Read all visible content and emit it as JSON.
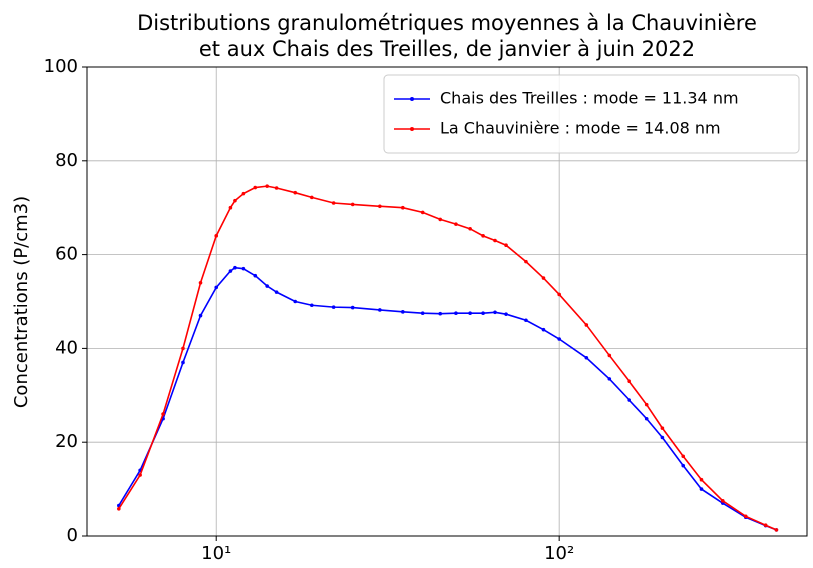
{
  "chart_data": {
    "type": "line",
    "title": [
      "Distributions granulométriques moyennes à la Chauvinière",
      "et aux Chais des Treilles, de janvier à juin 2022"
    ],
    "ylabel": "Concentrations (P/cm3)",
    "xscale": "log",
    "xlim": [
      4.2,
      528
    ],
    "xticks": [
      {
        "value": 10,
        "label": "10¹"
      },
      {
        "value": 100,
        "label": "10²"
      }
    ],
    "ylim": [
      0,
      100
    ],
    "yticks": [
      0,
      20,
      40,
      60,
      80,
      100
    ],
    "grid": true,
    "legend": "upper right",
    "x": [
      5.2,
      6,
      7,
      8,
      9,
      10,
      11,
      11.34,
      12,
      13,
      14.08,
      15,
      17,
      19,
      22,
      25,
      30,
      35,
      40,
      45,
      50,
      55,
      60,
      65,
      70,
      80,
      90,
      100,
      120,
      140,
      160,
      180,
      200,
      230,
      260,
      300,
      350,
      400,
      430
    ],
    "series": [
      {
        "name": "Chais des Treilles : mode = 11.34 nm",
        "color": "#0000ff",
        "values": [
          6.5,
          14,
          25,
          37,
          47,
          53,
          56.5,
          57.2,
          57,
          55.5,
          53.3,
          52,
          50,
          49.2,
          48.8,
          48.7,
          48.2,
          47.8,
          47.5,
          47.4,
          47.5,
          47.5,
          47.5,
          47.7,
          47.3,
          46,
          44,
          42,
          38,
          33.5,
          29,
          25,
          21,
          15,
          10,
          7,
          4,
          2.2,
          1.3
        ]
      },
      {
        "name": "La Chauvinière : mode = 14.08 nm",
        "color": "#ff0000",
        "values": [
          5.8,
          13,
          26,
          40,
          54,
          64,
          70,
          71.5,
          73,
          74.3,
          74.6,
          74.2,
          73.2,
          72.2,
          71,
          70.7,
          70.3,
          70,
          69,
          67.5,
          66.5,
          65.5,
          64,
          63,
          62,
          58.5,
          55,
          51.5,
          45,
          38.5,
          33,
          28,
          23,
          17,
          12,
          7.5,
          4.2,
          2.3,
          1.3
        ]
      }
    ]
  }
}
